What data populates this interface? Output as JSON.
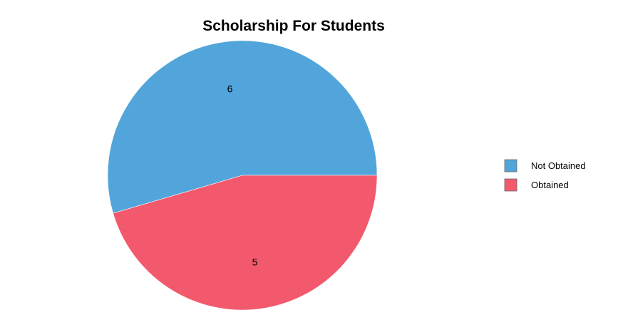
{
  "chart_data": {
    "type": "pie",
    "title": "Scholarship For Students",
    "categories": [
      "Not Obtained",
      "Obtained"
    ],
    "values": [
      6,
      5
    ],
    "slice_labels": [
      "6",
      "5"
    ],
    "colors": [
      "#52a5da",
      "#f2596d"
    ],
    "legend": {
      "position": "right",
      "entries": [
        "Not Obtained",
        "Obtained"
      ]
    }
  }
}
